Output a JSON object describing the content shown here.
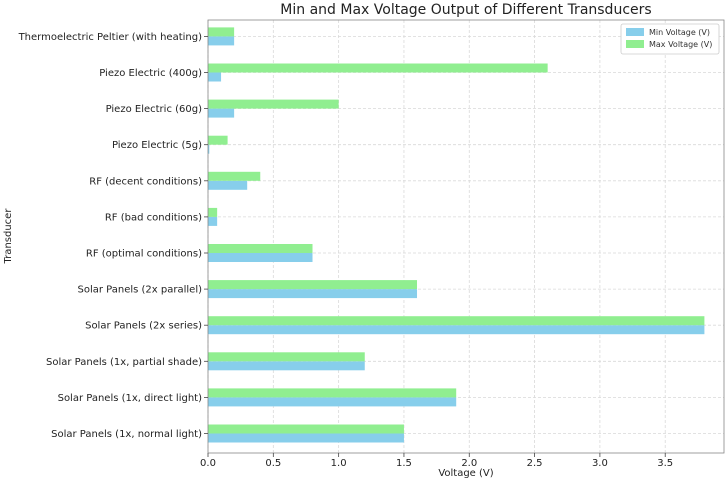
{
  "chart_data": {
    "type": "bar",
    "orientation": "horizontal",
    "title": "Min and Max Voltage Output of Different Transducers",
    "xlabel": "Voltage (V)",
    "ylabel": "Transducer",
    "xlim": [
      0,
      3.95
    ],
    "xticks": [
      "0.0",
      "0.5",
      "1.0",
      "1.5",
      "2.0",
      "2.5",
      "3.0",
      "3.5"
    ],
    "grid": true,
    "legend_position": "top-right",
    "categories": [
      "Solar Panels (1x, normal light)",
      "Solar Panels (1x, direct light)",
      "Solar Panels (1x, partial shade)",
      "Solar Panels (2x series)",
      "Solar Panels (2x parallel)",
      "RF (optimal conditions)",
      "RF (bad conditions)",
      "RF (decent conditions)",
      "Piezo Electric (5g)",
      "Piezo Electric (60g)",
      "Piezo Electric (400g)",
      "Thermoelectric Peltier (with heating)"
    ],
    "series": [
      {
        "name": "Min Voltage (V)",
        "color": "#87ceeb",
        "values": [
          1.5,
          1.9,
          1.2,
          3.8,
          1.6,
          0.8,
          0.07,
          0.3,
          0.01,
          0.2,
          0.1,
          0.2
        ]
      },
      {
        "name": "Max Voltage (V)",
        "color": "#90ee90",
        "values": [
          1.5,
          1.9,
          1.2,
          3.8,
          1.6,
          0.8,
          0.07,
          0.4,
          0.15,
          1.0,
          2.6,
          0.2
        ]
      }
    ]
  }
}
